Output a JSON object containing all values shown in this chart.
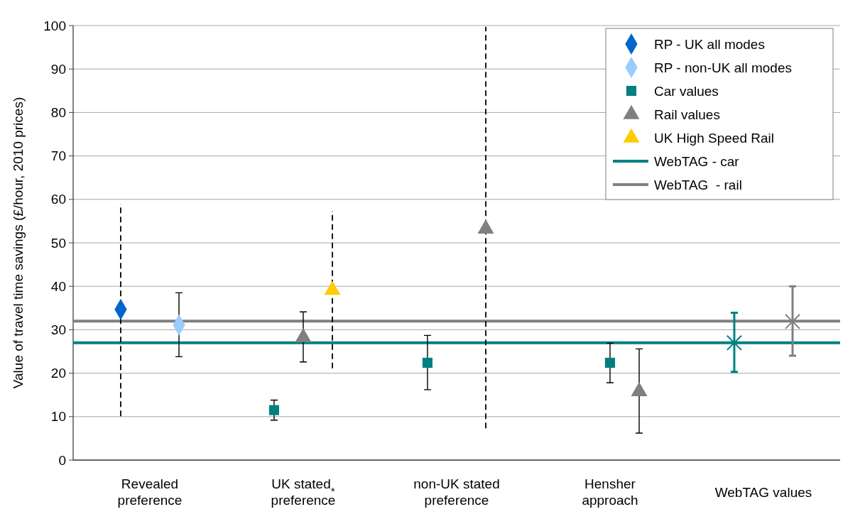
{
  "chart_data": {
    "type": "scatter",
    "ylabel": "Value of travel time savings (£/hour, 2010 prices)",
    "categories": [
      null,
      "Revealed\npreference",
      null,
      null,
      "UK stated$_{*}$\npreference",
      null,
      null,
      "non-UK stated\npreference",
      null,
      null,
      "Hensher\napproach",
      null,
      null,
      "WebTAG values",
      null
    ],
    "ylim": [
      0,
      100
    ],
    "yticks": [
      0,
      10,
      20,
      30,
      40,
      50,
      60,
      70,
      80,
      90,
      100
    ],
    "grid": "y",
    "legend": "top right",
    "ref_lines": [
      {
        "axis": "y",
        "value": 27,
        "label": "WebTAG - car",
        "color": "#008080"
      },
      {
        "axis": "y",
        "value": 32,
        "label": "WebTAG  - rail",
        "color": "#808080"
      }
    ],
    "series": [
      {
        "name": "RP - UK all modes",
        "color": "#0066cc",
        "marker": "diamond",
        "line_style": "dashed",
        "values": [
          34.7,
          null,
          null,
          null,
          null,
          null,
          null,
          null,
          null,
          null,
          null,
          null,
          null,
          null,
          null
        ],
        "errors": [
          [
            10.1,
            59.0
          ],
          null,
          null,
          null,
          null,
          null,
          null,
          null,
          null,
          null,
          null,
          null,
          null,
          null,
          null
        ]
      },
      {
        "name": "RP - non-UK all modes",
        "color": "#99ccff",
        "marker": "diamond",
        "values": [
          null,
          null,
          31.1,
          null,
          null,
          null,
          null,
          null,
          null,
          null,
          null,
          null,
          null,
          null,
          null
        ],
        "errors": [
          null,
          null,
          [
            23.8,
            38.5
          ],
          null,
          null,
          null,
          null,
          null,
          null,
          null,
          null,
          null,
          null,
          null,
          null
        ]
      },
      {
        "name": "Car values",
        "color": "#008080",
        "marker": "square",
        "values": [
          null,
          null,
          null,
          11.5,
          null,
          null,
          22.4,
          null,
          null,
          null,
          22.4,
          null,
          null,
          null,
          null
        ],
        "errors": [
          null,
          null,
          null,
          [
            9.2,
            13.8
          ],
          null,
          null,
          [
            16.2,
            28.7
          ],
          null,
          null,
          null,
          [
            17.8,
            26.9
          ],
          null,
          null,
          null,
          null
        ]
      },
      {
        "name": "Rail values",
        "color": "#808080",
        "marker": "triangle",
        "values": [
          null,
          null,
          null,
          null,
          28.2,
          null,
          null,
          null,
          null,
          null,
          null,
          15.8,
          null,
          null,
          null
        ],
        "errors": [
          null,
          null,
          null,
          null,
          [
            22.6,
            34.1
          ],
          null,
          null,
          null,
          null,
          null,
          null,
          [
            6.2,
            25.6
          ],
          null,
          null,
          null
        ]
      },
      {
        "name": "UK High Speed Rail",
        "color": "#ffcc00",
        "marker": "triangle",
        "line_style": "dashed",
        "values": [
          null,
          null,
          null,
          null,
          null,
          39.1,
          null,
          null,
          null,
          null,
          null,
          null,
          null,
          null,
          null
        ],
        "errors": [
          null,
          null,
          null,
          null,
          null,
          [
            21.1,
            57.3
          ],
          null,
          null,
          null,
          null,
          null,
          null,
          null,
          null,
          null
        ]
      },
      {
        "color": "#808080",
        "marker": "triangle",
        "line_style": "dashed",
        "values": [
          null,
          null,
          null,
          null,
          null,
          null,
          null,
          null,
          53.2,
          null,
          null,
          null,
          null,
          null,
          null
        ],
        "errors": [
          null,
          null,
          null,
          null,
          null,
          null,
          null,
          null,
          [
            7.3,
            99.7
          ],
          null,
          null,
          null,
          null,
          null,
          null
        ]
      },
      {
        "color": "#008080",
        "marker": "cross",
        "values": [
          null,
          null,
          null,
          null,
          null,
          null,
          null,
          null,
          null,
          null,
          null,
          null,
          27.0,
          null,
          null
        ],
        "errors": [
          null,
          null,
          null,
          null,
          null,
          null,
          null,
          null,
          null,
          null,
          null,
          null,
          [
            20.3,
            33.9
          ],
          null,
          null
        ]
      },
      {
        "color": "#808080",
        "marker": "cross",
        "values": [
          null,
          null,
          null,
          null,
          null,
          null,
          null,
          null,
          null,
          null,
          null,
          null,
          null,
          null,
          31.9
        ],
        "errors": [
          null,
          null,
          null,
          null,
          null,
          null,
          null,
          null,
          null,
          null,
          null,
          null,
          null,
          null,
          [
            24.0,
            40.0
          ]
        ]
      }
    ]
  }
}
